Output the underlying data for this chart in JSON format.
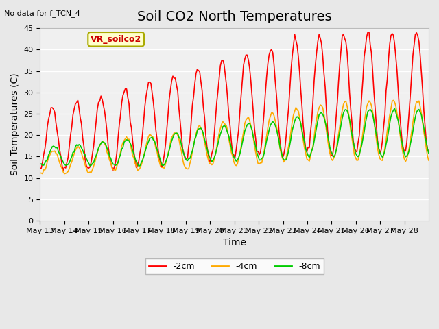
{
  "title": "Soil CO2 North Temperatures",
  "xlabel": "Time",
  "ylabel": "Soil Temperatures (C)",
  "top_left_text": "No data for f_TCN_4",
  "box_label": "VR_soilco2",
  "ylim": [
    0,
    45
  ],
  "x_tick_labels": [
    "May 13",
    "May 14",
    "May 15",
    "May 16",
    "May 17",
    "May 18",
    "May 19",
    "May 20",
    "May 21",
    "May 22",
    "May 23",
    "May 24",
    "May 25",
    "May 26",
    "May 27",
    "May 28"
  ],
  "legend_entries": [
    "-2cm",
    "-4cm",
    "-8cm"
  ],
  "legend_colors": [
    "#ff0000",
    "#ffaa00",
    "#00cc00"
  ],
  "line_colors": [
    "#ff0000",
    "#ffaa00",
    "#00cc00"
  ],
  "title_fontsize": 14,
  "label_fontsize": 10,
  "tick_fontsize": 8
}
